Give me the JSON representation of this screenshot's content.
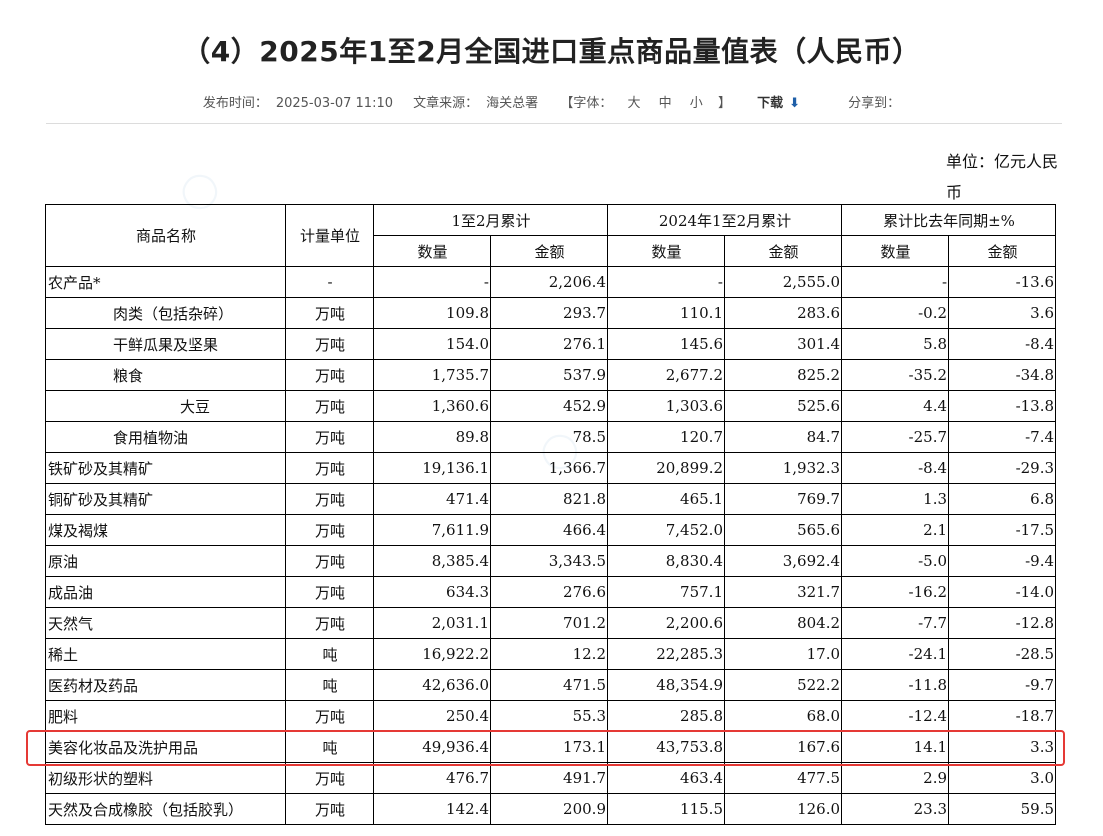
{
  "page": {
    "title": "（4）2025年1至2月全国进口重点商品量值表（人民币）",
    "meta": {
      "publish_label": "发布时间：",
      "publish_time": "2025-03-07 11:10",
      "source_label": "文章来源：",
      "source": "海关总署",
      "font_label": "【字体：",
      "font_large": "大",
      "font_medium": "中",
      "font_small": "小",
      "font_close": "】",
      "download_label": "下载",
      "share_label": "分享到："
    },
    "unit_label": "单位：亿元人民币"
  },
  "table": {
    "headers": {
      "name": "商品名称",
      "unit": "计量单位",
      "cur_period": "1至2月累计",
      "prev_period": "2024年1至2月累计",
      "change": "累计比去年同期±%",
      "qty": "数量",
      "amt": "金额"
    },
    "rows": [
      {
        "name": "农产品*",
        "indent": 0,
        "unit": "-",
        "q1": "-",
        "a1": "2,206.4",
        "q2": "-",
        "a2": "2,555.0",
        "dq": "-",
        "da": "-13.6"
      },
      {
        "name": "肉类（包括杂碎）",
        "indent": 1,
        "unit": "万吨",
        "q1": "109.8",
        "a1": "293.7",
        "q2": "110.1",
        "a2": "283.6",
        "dq": "-0.2",
        "da": "3.6"
      },
      {
        "name": "干鲜瓜果及坚果",
        "indent": 1,
        "unit": "万吨",
        "q1": "154.0",
        "a1": "276.1",
        "q2": "145.6",
        "a2": "301.4",
        "dq": "5.8",
        "da": "-8.4"
      },
      {
        "name": "粮食",
        "indent": 1,
        "unit": "万吨",
        "q1": "1,735.7",
        "a1": "537.9",
        "q2": "2,677.2",
        "a2": "825.2",
        "dq": "-35.2",
        "da": "-34.8"
      },
      {
        "name": "大豆",
        "indent": 2,
        "unit": "万吨",
        "q1": "1,360.6",
        "a1": "452.9",
        "q2": "1,303.6",
        "a2": "525.6",
        "dq": "4.4",
        "da": "-13.8"
      },
      {
        "name": "食用植物油",
        "indent": 1,
        "unit": "万吨",
        "q1": "89.8",
        "a1": "78.5",
        "q2": "120.7",
        "a2": "84.7",
        "dq": "-25.7",
        "da": "-7.4"
      },
      {
        "name": "铁矿砂及其精矿",
        "indent": 0,
        "unit": "万吨",
        "q1": "19,136.1",
        "a1": "1,366.7",
        "q2": "20,899.2",
        "a2": "1,932.3",
        "dq": "-8.4",
        "da": "-29.3"
      },
      {
        "name": "铜矿砂及其精矿",
        "indent": 0,
        "unit": "万吨",
        "q1": "471.4",
        "a1": "821.8",
        "q2": "465.1",
        "a2": "769.7",
        "dq": "1.3",
        "da": "6.8"
      },
      {
        "name": "煤及褐煤",
        "indent": 0,
        "unit": "万吨",
        "q1": "7,611.9",
        "a1": "466.4",
        "q2": "7,452.0",
        "a2": "565.6",
        "dq": "2.1",
        "da": "-17.5"
      },
      {
        "name": "原油",
        "indent": 0,
        "unit": "万吨",
        "q1": "8,385.4",
        "a1": "3,343.5",
        "q2": "8,830.4",
        "a2": "3,692.4",
        "dq": "-5.0",
        "da": "-9.4"
      },
      {
        "name": "成品油",
        "indent": 0,
        "unit": "万吨",
        "q1": "634.3",
        "a1": "276.6",
        "q2": "757.1",
        "a2": "321.7",
        "dq": "-16.2",
        "da": "-14.0"
      },
      {
        "name": "天然气",
        "indent": 0,
        "unit": "万吨",
        "q1": "2,031.1",
        "a1": "701.2",
        "q2": "2,200.6",
        "a2": "804.2",
        "dq": "-7.7",
        "da": "-12.8"
      },
      {
        "name": "稀土",
        "indent": 0,
        "unit": "吨",
        "q1": "16,922.2",
        "a1": "12.2",
        "q2": "22,285.3",
        "a2": "17.0",
        "dq": "-24.1",
        "da": "-28.5"
      },
      {
        "name": "医药材及药品",
        "indent": 0,
        "unit": "吨",
        "q1": "42,636.0",
        "a1": "471.5",
        "q2": "48,354.9",
        "a2": "522.2",
        "dq": "-11.8",
        "da": "-9.7"
      },
      {
        "name": "肥料",
        "indent": 0,
        "unit": "万吨",
        "q1": "250.4",
        "a1": "55.3",
        "q2": "285.8",
        "a2": "68.0",
        "dq": "-12.4",
        "da": "-18.7"
      },
      {
        "name": "美容化妆品及洗护用品",
        "indent": 0,
        "unit": "吨",
        "q1": "49,936.4",
        "a1": "173.1",
        "q2": "43,753.8",
        "a2": "167.6",
        "dq": "14.1",
        "da": "3.3"
      },
      {
        "name": "初级形状的塑料",
        "indent": 0,
        "unit": "万吨",
        "q1": "476.7",
        "a1": "491.7",
        "q2": "463.4",
        "a2": "477.5",
        "dq": "2.9",
        "da": "3.0"
      },
      {
        "name": "天然及合成橡胶（包括胶乳）",
        "indent": 0,
        "unit": "万吨",
        "q1": "142.4",
        "a1": "200.9",
        "q2": "115.5",
        "a2": "126.0",
        "dq": "23.3",
        "da": "59.5"
      }
    ]
  }
}
